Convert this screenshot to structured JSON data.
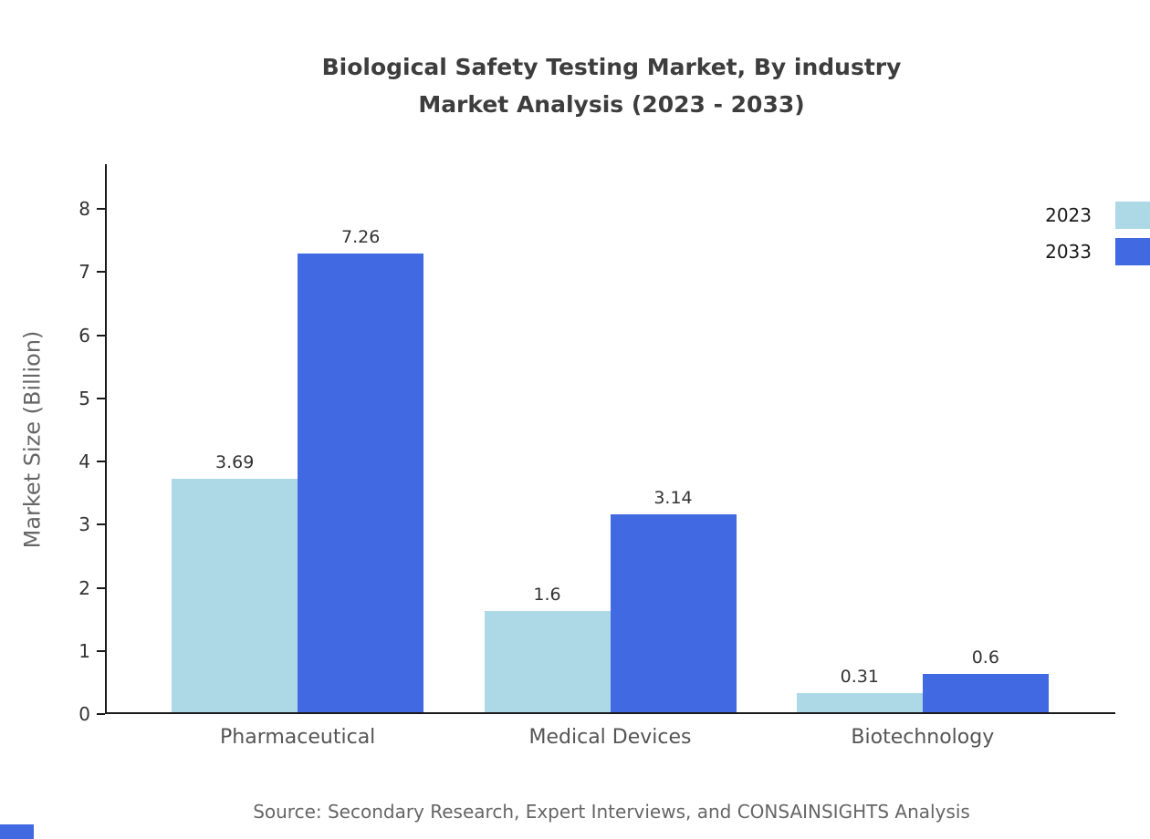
{
  "title": {
    "line1": "Biological Safety Testing Market, By industry",
    "line2": "Market Analysis (2023 - 2033)"
  },
  "source": "Source: Secondary Research, Expert Interviews, and CONSAINSIGHTS Analysis",
  "colors": {
    "series_2023": "#ADD8E6",
    "series_2033": "#4169E1",
    "accent": "#4169E1",
    "axis": "#1a1a1a",
    "title_text": "#3d3d3d",
    "muted_text": "#666666"
  },
  "chart_data": {
    "type": "bar",
    "title": "Biological Safety Testing Market, By industry Market Analysis (2023 - 2033)",
    "categories": [
      "Pharmaceutical",
      "Medical Devices",
      "Biotechnology"
    ],
    "series": [
      {
        "name": "2023",
        "color": "#ADD8E6",
        "values": [
          3.69,
          1.6,
          0.31
        ]
      },
      {
        "name": "2033",
        "color": "#4169E1",
        "values": [
          7.26,
          3.14,
          0.6
        ]
      }
    ],
    "value_labels": {
      "2023": [
        "3.69",
        "1.6",
        "0.31"
      ],
      "2033": [
        "7.26",
        "3.14",
        "0.6"
      ]
    },
    "xlabel": "",
    "ylabel": "Market Size (Billion)",
    "ylim": [
      0,
      8
    ],
    "yticks": [
      0,
      1,
      2,
      3,
      4,
      5,
      6,
      7,
      8
    ],
    "grid": false,
    "legend_position": "top-right"
  }
}
